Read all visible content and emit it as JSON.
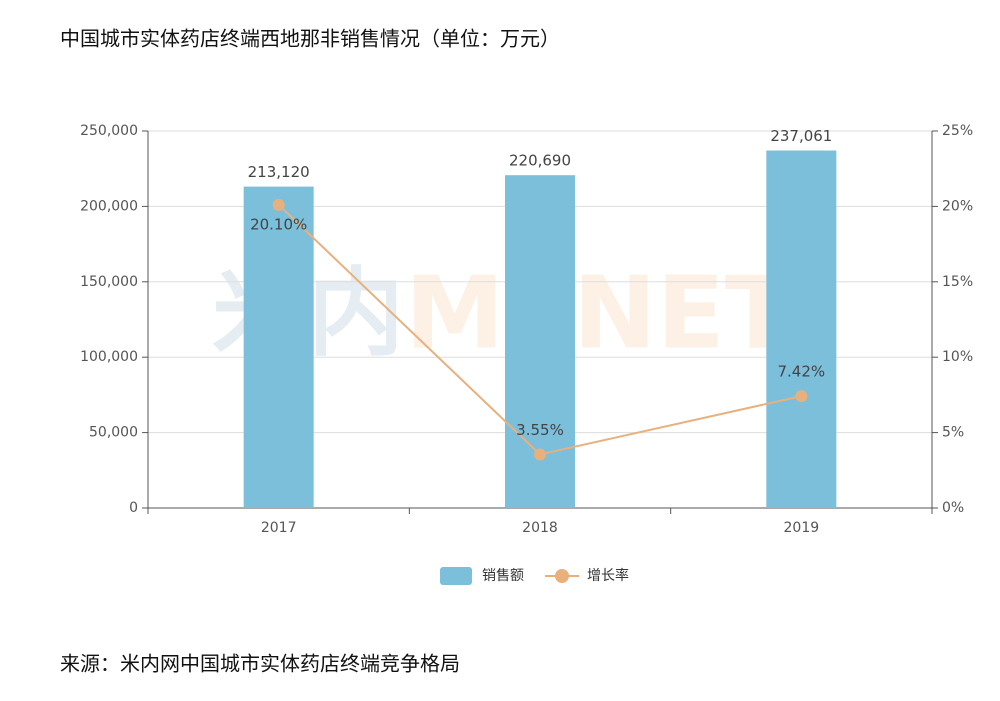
{
  "chart_data": {
    "type": "bar",
    "title": "中国城市实体药店终端西地那非销售情况（单位：万元）",
    "source": "来源：米内网中国城市实体药店终端竞争格局",
    "watermark": [
      "米内",
      "MENET"
    ],
    "categories": [
      "2017",
      "2018",
      "2019"
    ],
    "series": [
      {
        "name": "销售额",
        "type": "bar",
        "color": "#7bbfdb",
        "values": [
          213120,
          220690,
          237061
        ],
        "value_labels": [
          "213,120",
          "220,690",
          "237,061"
        ]
      },
      {
        "name": "增长率",
        "type": "line",
        "axis": "y2",
        "color": "#e8b07d",
        "values": [
          20.1,
          3.55,
          7.42
        ],
        "value_labels": [
          "20.10%",
          "3.55%",
          "7.42%"
        ]
      }
    ],
    "ylim": [
      0,
      250000
    ],
    "yticks": [
      0,
      {
        "value": 50000,
        "label": "50,000"
      },
      {
        "value": 100000,
        "label": "100,000"
      },
      {
        "value": 150000,
        "label": "150,000"
      },
      {
        "value": 200000,
        "label": "200,000"
      },
      {
        "value": 250000,
        "label": "250,000"
      }
    ],
    "y2lim": [
      0,
      25
    ],
    "y2ticks": [
      {
        "value": 0,
        "label": "0%"
      },
      {
        "value": 5,
        "label": "5%"
      },
      {
        "value": 10,
        "label": "10%"
      },
      {
        "value": 15,
        "label": "15%"
      },
      {
        "value": 20,
        "label": "20%"
      },
      {
        "value": 25,
        "label": "25%"
      }
    ],
    "grid": true,
    "legend": "bottom"
  }
}
